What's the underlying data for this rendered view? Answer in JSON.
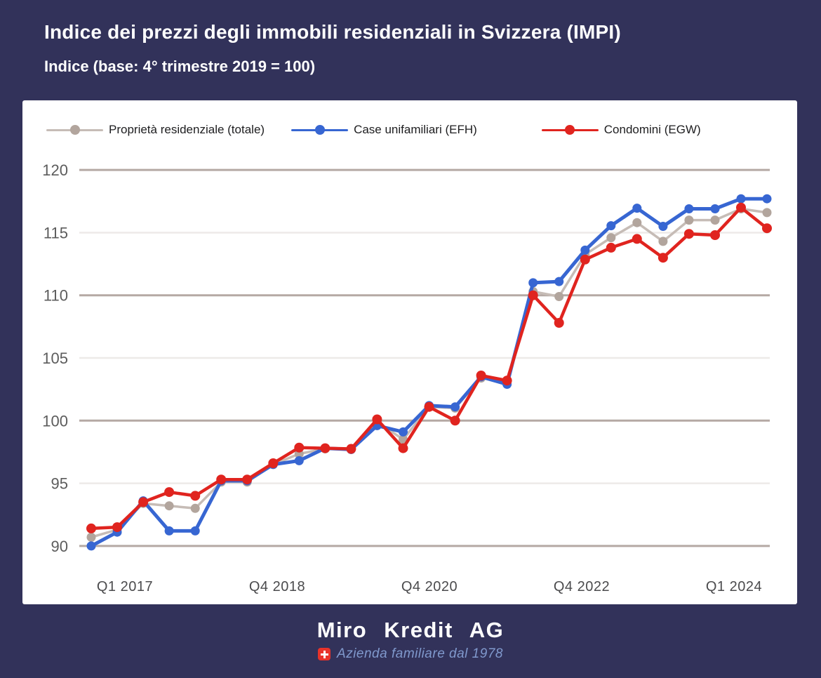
{
  "header": {
    "title": "Indice dei prezzi degli immobili residenziali in Svizzera (IMPI)",
    "subtitle": "Indice (base: 4° trimestre 2019 = 100)"
  },
  "chart_data": {
    "type": "line",
    "title": "Indice dei prezzi degli immobili residenziali in Svizzera (IMPI)",
    "x_tick_labels": [
      "Q1 2017",
      "Q4 2018",
      "Q4 2020",
      "Q4 2022",
      "Q1 2024"
    ],
    "y_ticks": [
      90,
      95,
      100,
      105,
      110,
      115,
      120
    ],
    "ylim": [
      88,
      122
    ],
    "n_points": 27,
    "grid": "horizontal-only",
    "legend_position": "top-left",
    "colors": {
      "background": "#32325a",
      "card": "#ffffff",
      "grid_major": "#b5a9a4",
      "grid_minor": "#edeae8",
      "y_label": "#5c5c5c",
      "x_label": "#4b4b4d"
    },
    "series": [
      {
        "name": "Proprietà residenziale (totale)",
        "key": "totale",
        "line_color": "#c6bcb6",
        "dot_color": "#b2a59d",
        "line_width": 3.5,
        "dot_radius": 6.5,
        "values": [
          90.7,
          91.3,
          93.4,
          93.2,
          93.0,
          95.1,
          95.1,
          96.5,
          97.35,
          97.75,
          97.7,
          99.9,
          98.5,
          101.1,
          101.0,
          103.4,
          103.1,
          110.3,
          109.9,
          113.25,
          114.6,
          115.8,
          114.3,
          116.0,
          116.0,
          116.9,
          116.6
        ]
      },
      {
        "name": "Case unifamiliari (EFH)",
        "key": "efh",
        "line_color": "#3766d2",
        "dot_color": "#3766d2",
        "line_width": 5,
        "dot_radius": 6.5,
        "values": [
          90.0,
          91.1,
          93.6,
          91.2,
          91.2,
          95.2,
          95.2,
          96.5,
          96.8,
          97.8,
          97.7,
          99.6,
          99.1,
          101.2,
          101.1,
          103.5,
          102.9,
          111.0,
          111.1,
          113.6,
          115.55,
          116.95,
          115.5,
          116.9,
          116.9,
          117.7,
          117.7
        ]
      },
      {
        "name": "Condomini (EGW)",
        "key": "egw",
        "line_color": "#e0241f",
        "dot_color": "#e0241f",
        "line_width": 4.5,
        "dot_radius": 7,
        "values": [
          91.4,
          91.5,
          93.5,
          94.3,
          94.0,
          95.3,
          95.3,
          96.6,
          97.85,
          97.8,
          97.75,
          100.1,
          97.8,
          101.1,
          100.0,
          103.6,
          103.2,
          110.0,
          107.8,
          112.85,
          113.8,
          114.5,
          113.0,
          114.9,
          114.8,
          117.0,
          115.35
        ]
      }
    ]
  },
  "footer": {
    "brand": "Miro Kredit AG",
    "tagline": "Azienda familiare dal 1978",
    "flag_icon": "swiss-flag"
  }
}
